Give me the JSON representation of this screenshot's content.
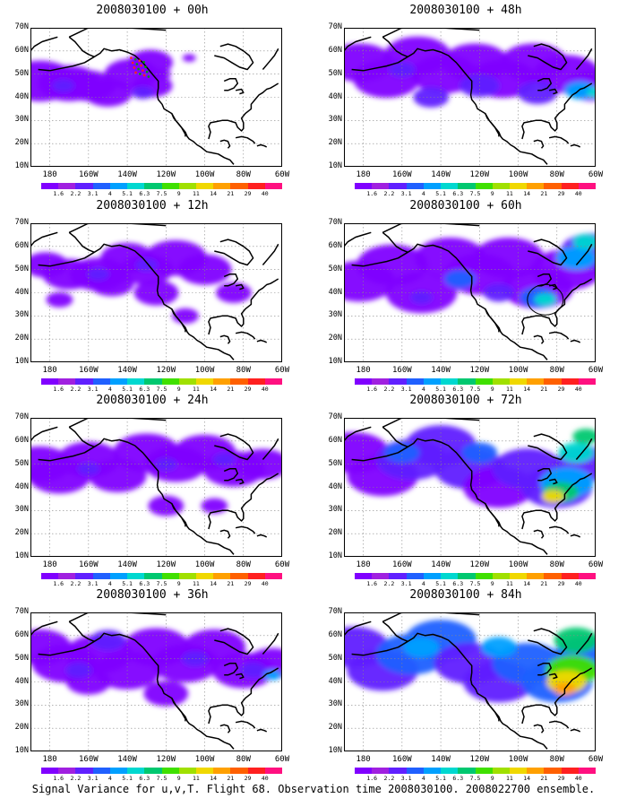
{
  "figure_caption": "Signal Variance for u,v,T. Flight 68. Observation time 2008030100. 2008022700 ensemble.",
  "latitude_labels": [
    "70N",
    "60N",
    "50N",
    "40N",
    "30N",
    "20N",
    "10N"
  ],
  "longitude_labels": [
    "180",
    "160W",
    "140W",
    "120W",
    "100W",
    "80W",
    "60W"
  ],
  "colorbar": {
    "colors": [
      "#8000ff",
      "#a020e0",
      "#6020ff",
      "#2060ff",
      "#00a0ff",
      "#00d8d0",
      "#00c870",
      "#40e000",
      "#a0e000",
      "#f0d800",
      "#ffa000",
      "#ff6000",
      "#ff2020",
      "#ff1080"
    ],
    "labels": [
      "1.6",
      "2.2",
      "3.1",
      "4",
      "5.1",
      "6.3",
      "7.5",
      "9",
      "11",
      "14",
      "21",
      "29",
      "40"
    ]
  },
  "panels": [
    {
      "title": "2008030100 + 00h"
    },
    {
      "title": "2008030100 + 12h"
    },
    {
      "title": "2008030100 + 24h"
    },
    {
      "title": "2008030100 + 36h"
    },
    {
      "title": "2008030100 + 48h"
    },
    {
      "title": "2008030100 + 60h"
    },
    {
      "title": "2008030100 + 72h"
    },
    {
      "title": "2008030100 + 84h"
    }
  ]
}
